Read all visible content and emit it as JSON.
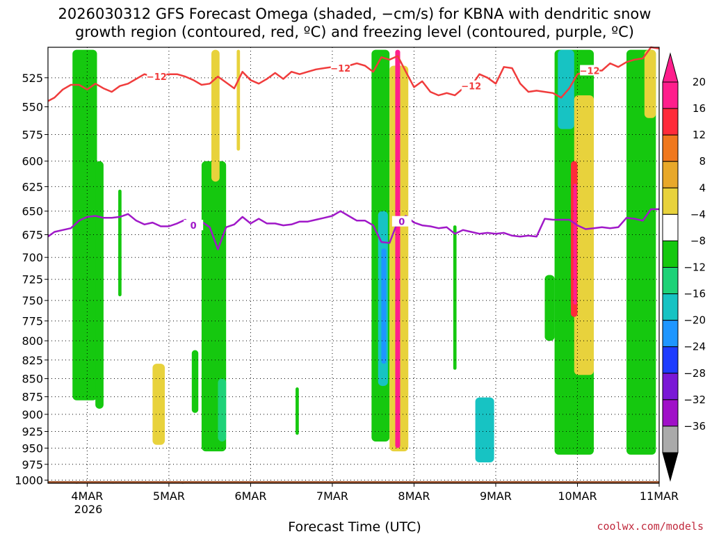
{
  "chart_data": {
    "type": "heatmap",
    "title_lines": [
      "2026030312 GFS Forecast Omega (shaded, −cm/s) for KBNA with dendritic snow",
      "growth region (contoured, red, ºC) and freezing level (contoured, purple, ºC)"
    ],
    "xlabel": "Forecast Time (UTC)",
    "credit": "coolwx.com/models",
    "x_ticks": [
      "4MAR",
      "5MAR",
      "6MAR",
      "7MAR",
      "8MAR",
      "9MAR",
      "10MAR",
      "11MAR"
    ],
    "x_tick_days": [
      4,
      5,
      6,
      7,
      8,
      9,
      10,
      11
    ],
    "x_sublabel": "2026",
    "xlim_days": [
      3.52,
      11.0
    ],
    "y_ticks": [
      525,
      550,
      575,
      600,
      625,
      650,
      675,
      700,
      725,
      750,
      775,
      800,
      825,
      850,
      875,
      900,
      925,
      950,
      975,
      1000
    ],
    "ylim_hpa": [
      500,
      1005
    ],
    "y_reversed": true,
    "grid": true,
    "colorbar": {
      "labels": [
        "20",
        "16",
        "12",
        "8",
        "4",
        "−4",
        "−8",
        "−12",
        "−16",
        "−20",
        "−24",
        "−28",
        "−32",
        "−36"
      ],
      "colors": [
        "#ff1e8c",
        "#ff2b3a",
        "#f0781e",
        "#e8a82a",
        "#e8d23c",
        "#ffffff",
        "#15c80f",
        "#1ed278",
        "#17c3c3",
        "#1e96ff",
        "#1e3cff",
        "#7a18d6",
        "#a010c8",
        "#aaaaaa"
      ],
      "top_arrow_color": "#ff1e8c",
      "bottom_arrow_color": "#000000"
    },
    "contours": [
      {
        "value": -12,
        "color": "#f03c3c",
        "label_text": "−12",
        "label_days": [
          4.85,
          7.1,
          8.7,
          10.15
        ],
        "x_days": [
          3.52,
          3.6,
          3.7,
          3.8,
          3.9,
          4.0,
          4.1,
          4.2,
          4.3,
          4.4,
          4.5,
          4.6,
          4.7,
          4.8,
          4.9,
          5.0,
          5.1,
          5.2,
          5.3,
          5.4,
          5.5,
          5.6,
          5.7,
          5.8,
          5.9,
          6.0,
          6.1,
          6.2,
          6.3,
          6.4,
          6.5,
          6.6,
          6.7,
          6.8,
          6.9,
          7.0,
          7.1,
          7.2,
          7.3,
          7.4,
          7.5,
          7.6,
          7.7,
          7.8,
          7.9,
          8.0,
          8.1,
          8.2,
          8.3,
          8.4,
          8.5,
          8.6,
          8.7,
          8.8,
          8.9,
          9.0,
          9.1,
          9.2,
          9.3,
          9.4,
          9.5,
          9.6,
          9.7,
          9.8,
          9.9,
          10.0,
          10.1,
          10.2,
          10.3,
          10.4,
          10.5,
          10.6,
          10.7,
          10.8,
          10.9,
          11.0
        ],
        "hpa": [
          545,
          542,
          535,
          531,
          531,
          535,
          530,
          534,
          537,
          532,
          530,
          526,
          522,
          524,
          523,
          522,
          522,
          524,
          527,
          531,
          530,
          524,
          529,
          534,
          520,
          527,
          530,
          526,
          521,
          526,
          520,
          522,
          520,
          518,
          517,
          516,
          517,
          515,
          513,
          515,
          520,
          508,
          510,
          507,
          520,
          533,
          528,
          537,
          540,
          538,
          540,
          534,
          532,
          522,
          525,
          530,
          516,
          517,
          530,
          537,
          536,
          537,
          538,
          542,
          534,
          522,
          520,
          519,
          519,
          513,
          516,
          512,
          510,
          509,
          500,
          501
        ]
      },
      {
        "value": 0,
        "color": "#a018c8",
        "label_text": "0",
        "label_days": [
          5.3,
          7.85
        ],
        "x_days": [
          3.52,
          3.6,
          3.7,
          3.8,
          3.9,
          4.0,
          4.1,
          4.2,
          4.3,
          4.4,
          4.5,
          4.6,
          4.7,
          4.8,
          4.9,
          5.0,
          5.1,
          5.2,
          5.3,
          5.4,
          5.5,
          5.6,
          5.7,
          5.8,
          5.9,
          6.0,
          6.1,
          6.2,
          6.3,
          6.4,
          6.5,
          6.6,
          6.7,
          6.8,
          6.9,
          7.0,
          7.1,
          7.2,
          7.3,
          7.4,
          7.5,
          7.6,
          7.7,
          7.8,
          7.9,
          8.0,
          8.1,
          8.2,
          8.3,
          8.4,
          8.5,
          8.6,
          8.7,
          8.8,
          8.9,
          9.0,
          9.1,
          9.2,
          9.3,
          9.4,
          9.5,
          9.6,
          9.7,
          9.8,
          9.9,
          10.0,
          10.1,
          10.2,
          10.3,
          10.4,
          10.5,
          10.6,
          10.7,
          10.8,
          10.9,
          11.0
        ],
        "hpa": [
          677,
          672,
          670,
          668,
          660,
          656,
          655,
          657,
          657,
          656,
          653,
          660,
          664,
          662,
          666,
          666,
          663,
          659,
          665,
          661,
          667,
          691,
          667,
          664,
          656,
          663,
          658,
          663,
          663,
          665,
          664,
          661,
          661,
          659,
          657,
          655,
          650,
          655,
          660,
          660,
          665,
          683,
          684,
          661,
          655,
          662,
          665,
          666,
          668,
          667,
          674,
          670,
          672,
          674,
          673,
          674,
          673,
          676,
          677,
          676,
          677,
          658,
          659,
          659,
          659,
          665,
          669,
          668,
          667,
          668,
          667,
          657,
          658,
          660,
          648,
          648
        ]
      }
    ],
    "shaded_regions": [
      {
        "name": "green-4mar",
        "x_days": [
          3.82,
          4.12
        ],
        "hpa": [
          502,
          880
        ],
        "level": "-4"
      },
      {
        "name": "green-4mar-tail",
        "x_days": [
          4.1,
          4.2
        ],
        "hpa": [
          600,
          892
        ],
        "level": "-4"
      },
      {
        "name": "green-4mar-strip",
        "x_days": [
          4.38,
          4.42
        ],
        "hpa": [
          628,
          745
        ],
        "level": "-4"
      },
      {
        "name": "yellow-5mar",
        "x_days": [
          4.8,
          4.95
        ],
        "hpa": [
          830,
          945
        ],
        "level": "4"
      },
      {
        "name": "green-5mar",
        "x_days": [
          5.28,
          5.36
        ],
        "hpa": [
          812,
          898
        ],
        "level": "-4"
      },
      {
        "name": "green-6mar",
        "x_days": [
          5.4,
          5.7
        ],
        "hpa": [
          600,
          955
        ],
        "level": "-4"
      },
      {
        "name": "teal-6mar",
        "x_days": [
          5.6,
          5.7
        ],
        "hpa": [
          850,
          940
        ],
        "level": "-8"
      },
      {
        "name": "yellow-5mar-strip",
        "x_days": [
          5.52,
          5.62
        ],
        "hpa": [
          502,
          620
        ],
        "level": "4"
      },
      {
        "name": "yellow-6mar-strip",
        "x_days": [
          5.83,
          5.87
        ],
        "hpa": [
          502,
          590
        ],
        "level": "4"
      },
      {
        "name": "green-6-7mar",
        "x_days": [
          6.55,
          6.59
        ],
        "hpa": [
          862,
          930
        ],
        "level": "-4"
      },
      {
        "name": "green-7-8mar",
        "x_days": [
          7.48,
          7.7
        ],
        "hpa": [
          502,
          940
        ],
        "level": "-4"
      },
      {
        "name": "teal-7-8mar",
        "x_days": [
          7.56,
          7.68
        ],
        "hpa": [
          650,
          860
        ],
        "level": "-12"
      },
      {
        "name": "blue-7-8mar",
        "x_days": [
          7.6,
          7.66
        ],
        "hpa": [
          690,
          830
        ],
        "level": "-16"
      },
      {
        "name": "yellow-7-8mar",
        "x_days": [
          7.7,
          7.93
        ],
        "hpa": [
          515,
          955
        ],
        "level": "4"
      },
      {
        "name": "pink-8mar",
        "x_days": [
          7.77,
          7.83
        ],
        "hpa": [
          502,
          950
        ],
        "level": "20"
      },
      {
        "name": "green-8mar",
        "x_days": [
          8.48,
          8.52
        ],
        "hpa": [
          665,
          838
        ],
        "level": "-4"
      },
      {
        "name": "teal-9mar",
        "x_days": [
          8.75,
          8.98
        ],
        "hpa": [
          876,
          972
        ],
        "level": "-12"
      },
      {
        "name": "green-9mar-strip",
        "x_days": [
          9.6,
          9.72
        ],
        "hpa": [
          720,
          800
        ],
        "level": "-4"
      },
      {
        "name": "green-10mar",
        "x_days": [
          9.72,
          10.2
        ],
        "hpa": [
          502,
          960
        ],
        "level": "-4"
      },
      {
        "name": "cyan-10mar",
        "x_days": [
          9.76,
          9.96
        ],
        "hpa": [
          502,
          570
        ],
        "level": "-12"
      },
      {
        "name": "yellow-10mar",
        "x_days": [
          9.96,
          10.2
        ],
        "hpa": [
          540,
          845
        ],
        "level": "4"
      },
      {
        "name": "red-10mar",
        "x_days": [
          9.92,
          10.0
        ],
        "hpa": [
          600,
          770
        ],
        "level": "16"
      },
      {
        "name": "pink-10mar",
        "x_days": [
          9.95,
          9.99
        ],
        "hpa": [
          622,
          755
        ],
        "level": "20"
      },
      {
        "name": "green-11mar",
        "x_days": [
          10.6,
          10.96
        ],
        "hpa": [
          502,
          960
        ],
        "level": "-4"
      },
      {
        "name": "yellow-11mar-top",
        "x_days": [
          10.82,
          10.96
        ],
        "hpa": [
          502,
          560
        ],
        "level": "4"
      }
    ],
    "terrain_color": "#a0552d"
  }
}
